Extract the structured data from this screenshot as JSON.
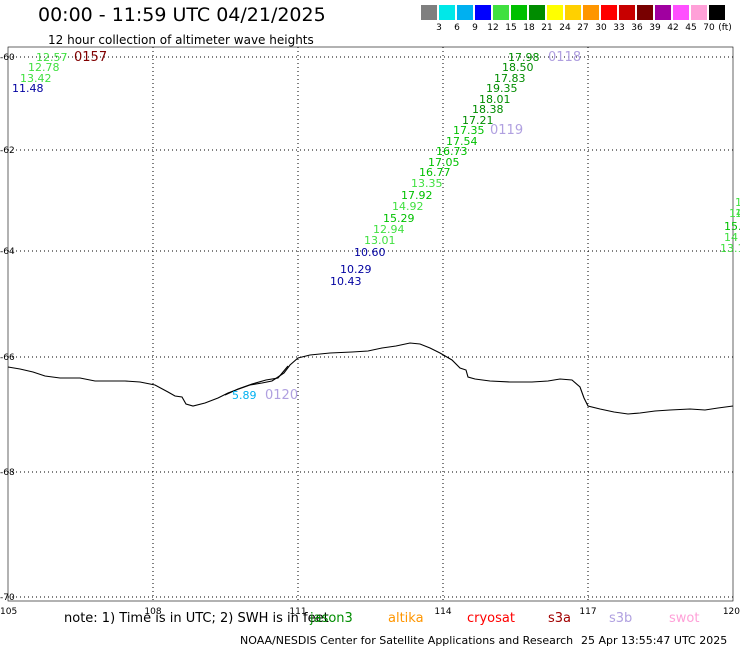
{
  "title": "00:00 - 11:59 UTC 04/21/2025",
  "subtitle": "12 hour collection of altimeter wave heights",
  "legend": {
    "colors": [
      "#7f7f7f",
      "#00e8e8",
      "#00b0f0",
      "#0000ff",
      "#40e040",
      "#00c000",
      "#008c00",
      "#ffff00",
      "#ffd000",
      "#ff9600",
      "#ff0000",
      "#c80000",
      "#780000",
      "#a000a0",
      "#ff50ff",
      "#ffa0d8",
      "#000000"
    ],
    "labels": [
      "3",
      "6",
      "9",
      "12",
      "15",
      "18",
      "21",
      "24",
      "27",
      "30",
      "33",
      "36",
      "39",
      "42",
      "45",
      "70"
    ],
    "unit": "(ft)"
  },
  "axes": {
    "lon_labels": [
      "105",
      "108",
      "111",
      "114",
      "117",
      "120"
    ],
    "lat_labels": [
      "-60",
      "-62",
      "-64",
      "-66",
      "-68",
      "-70"
    ]
  },
  "passes": [
    {
      "id": "0157",
      "color": "#800000",
      "points": [
        {
          "v": "12.57",
          "c": "#40e040"
        },
        {
          "v": "12.78",
          "c": "#40e040"
        },
        {
          "v": "13.42",
          "c": "#40e040"
        },
        {
          "v": "11.48",
          "c": "#0000a0"
        }
      ]
    },
    {
      "id": "0118",
      "color": "#b0a0e0",
      "points": [
        {
          "v": "17.98",
          "c": "#008c00"
        },
        {
          "v": "18.50",
          "c": "#008c00"
        },
        {
          "v": "17.83",
          "c": "#008c00"
        },
        {
          "v": "19.35",
          "c": "#008c00"
        },
        {
          "v": "18.01",
          "c": "#008c00"
        },
        {
          "v": "18.38",
          "c": "#008c00"
        },
        {
          "v": "17.21",
          "c": "#008c00"
        }
      ]
    },
    {
      "id": "0119",
      "color": "#b0a0e0",
      "points": [
        {
          "v": "17.35",
          "c": "#00c000"
        },
        {
          "v": "17.54",
          "c": "#00c000"
        },
        {
          "v": "16.73",
          "c": "#00c000"
        },
        {
          "v": "17.05",
          "c": "#00c000"
        },
        {
          "v": "16.77",
          "c": "#00c000"
        },
        {
          "v": "13.35",
          "c": "#40e040"
        },
        {
          "v": "17.92",
          "c": "#00c000"
        },
        {
          "v": "14.92",
          "c": "#40e040"
        },
        {
          "v": "15.29",
          "c": "#00c000"
        },
        {
          "v": "12.94",
          "c": "#40e040"
        },
        {
          "v": "13.01",
          "c": "#40e040"
        },
        {
          "v": "10.60",
          "c": "#0000a0"
        },
        {
          "v": "10.29",
          "c": "#0000a0"
        },
        {
          "v": "10.43",
          "c": "#0000a0"
        }
      ]
    },
    {
      "id": "0120",
      "color": "#b0a0e0",
      "points": [
        {
          "v": "5.89",
          "c": "#00b0f0"
        }
      ]
    }
  ],
  "edge_points": [
    {
      "v": "1",
      "c": "#40e040"
    },
    {
      "v": "1",
      "c": "#40e040"
    },
    {
      "v": "14",
      "c": "#40e040"
    },
    {
      "v": "15.",
      "c": "#00c000"
    },
    {
      "v": "14",
      "c": "#40e040"
    },
    {
      "v": "13.1",
      "c": "#40e040"
    }
  ],
  "note": "note: 1) Time is in UTC; 2) SWH is in feet",
  "missions": [
    {
      "name": "jason3",
      "color": "#008c00"
    },
    {
      "name": "altika",
      "color": "#ff9600"
    },
    {
      "name": "cryosat",
      "color": "#ff0000"
    },
    {
      "name": "s3a",
      "color": "#a00000"
    },
    {
      "name": "s3b",
      "color": "#b0a0e0"
    },
    {
      "name": "swot",
      "color": "#ffa0d8"
    }
  ],
  "footer_org": "NOAA/NESDIS Center for Satellite Applications and Research",
  "footer_timestamp": "25 Apr 13:55:47 UTC 2025"
}
